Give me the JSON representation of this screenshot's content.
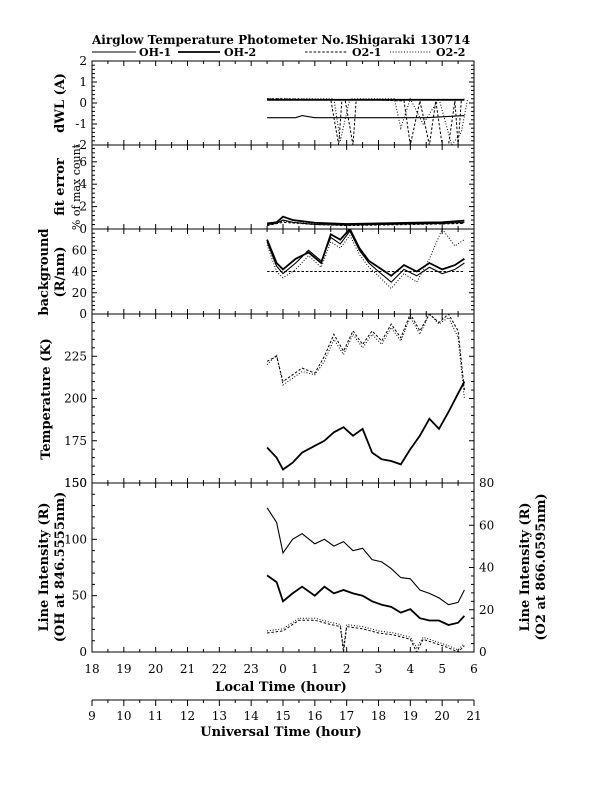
{
  "figure": {
    "title_left": "Airglow Temperature Photometer No.1",
    "title_station": "Shigaraki",
    "title_date": "130714"
  },
  "legend": [
    {
      "name": "OH-1",
      "style": "solid"
    },
    {
      "name": "OH-2",
      "style": "bold"
    },
    {
      "name": "O2-1",
      "style": "dash"
    },
    {
      "name": "O2-2",
      "style": "dot"
    }
  ],
  "chart_data": [
    {
      "type": "line",
      "id": "dwl",
      "ylabel": "dWL (A)",
      "ylim": [
        -2,
        2
      ],
      "yticks": [
        -2,
        -1,
        0,
        1,
        2
      ],
      "xlim_local": [
        18,
        30
      ],
      "series": [
        {
          "name": "OH-1",
          "x": [
            23.5,
            24.4,
            24.6,
            25.0,
            27.0,
            28.5,
            29.7
          ],
          "y": [
            -0.7,
            -0.7,
            -0.6,
            -0.7,
            -0.7,
            -0.7,
            -0.6
          ]
        },
        {
          "name": "OH-2",
          "x": [
            23.5,
            29.7
          ],
          "y": [
            0.15,
            0.15
          ]
        },
        {
          "name": "O2-1",
          "x": [
            23.5,
            24.0,
            25.5,
            25.75,
            25.85,
            25.95,
            26.2,
            26.3,
            26.6,
            26.7,
            27.8,
            28.0,
            28.3,
            28.6,
            28.8,
            29.0,
            29.2,
            29.4,
            29.5,
            29.6,
            29.7
          ],
          "y": [
            0.2,
            0.2,
            0.15,
            -2,
            0.15,
            0.15,
            -2,
            0.15,
            0.15,
            0.15,
            0.1,
            -2,
            0.1,
            -2,
            0.1,
            -2,
            -2,
            0.1,
            -2,
            0.1,
            0.2
          ]
        },
        {
          "name": "O2-2",
          "x": [
            23.5,
            25.6,
            25.8,
            26.1,
            26.4,
            27.5,
            27.7,
            28.0,
            28.4,
            28.9,
            29.3,
            29.6,
            29.8
          ],
          "y": [
            0.2,
            0.2,
            -1.8,
            0.2,
            0.2,
            0.2,
            -1.2,
            0.2,
            -1.0,
            0.2,
            -2,
            -1.4,
            0.2
          ]
        }
      ]
    },
    {
      "type": "line",
      "id": "fit_error",
      "ylabel": "fit error",
      "ylabel2": "% of max count",
      "ylim": [
        0,
        7.5
      ],
      "yticks": [
        0,
        2,
        4,
        6
      ],
      "xlim_local": [
        18,
        30
      ],
      "series": [
        {
          "name": "OH-1",
          "x": [
            23.5,
            23.8,
            24.0,
            24.3,
            25.0,
            26.0,
            27.0,
            28.0,
            29.0,
            29.7
          ],
          "y": [
            0.4,
            0.5,
            0.8,
            0.6,
            0.4,
            0.35,
            0.4,
            0.45,
            0.5,
            0.6
          ]
        },
        {
          "name": "OH-2",
          "x": [
            23.5,
            23.8,
            24.0,
            24.3,
            25.0,
            26.0,
            27.0,
            28.0,
            29.0,
            29.7
          ],
          "y": [
            0.5,
            0.6,
            1.1,
            0.8,
            0.55,
            0.45,
            0.5,
            0.55,
            0.6,
            0.75
          ]
        },
        {
          "name": "O2-1",
          "x": [
            23.5,
            24.0,
            25.0,
            26.0,
            27.0,
            28.0,
            29.0,
            29.7
          ],
          "y": [
            0.3,
            0.6,
            0.4,
            0.3,
            0.35,
            0.4,
            0.45,
            0.5
          ]
        },
        {
          "name": "O2-2",
          "x": [
            23.5,
            24.0,
            25.0,
            26.0,
            27.0,
            28.0,
            29.0,
            29.7
          ],
          "y": [
            0.35,
            0.7,
            0.45,
            0.35,
            0.4,
            0.45,
            0.5,
            0.55
          ]
        }
      ]
    },
    {
      "type": "line",
      "id": "background",
      "ylabel": "background",
      "ylabel2": "(R/nm)",
      "ylim": [
        0,
        80
      ],
      "yticks": [
        0,
        20,
        40,
        60
      ],
      "xlim_local": [
        18,
        30
      ],
      "series": [
        {
          "name": "OH-1",
          "x": [
            23.5,
            23.8,
            24.0,
            24.4,
            24.8,
            25.2,
            25.5,
            25.8,
            26.1,
            26.4,
            26.7,
            27.0,
            27.4,
            27.8,
            28.2,
            28.6,
            29.0,
            29.4,
            29.7
          ],
          "y": [
            68,
            45,
            38,
            48,
            60,
            50,
            72,
            66,
            78,
            60,
            48,
            40,
            30,
            42,
            36,
            44,
            38,
            42,
            48
          ]
        },
        {
          "name": "OH-2",
          "x": [
            23.5,
            23.8,
            24.0,
            24.4,
            24.8,
            25.2,
            25.5,
            25.8,
            26.1,
            26.4,
            26.7,
            27.0,
            27.4,
            27.8,
            28.2,
            28.6,
            29.0,
            29.4,
            29.7
          ],
          "y": [
            70,
            48,
            42,
            52,
            58,
            48,
            75,
            70,
            80,
            62,
            50,
            44,
            36,
            46,
            40,
            48,
            42,
            46,
            52
          ]
        },
        {
          "name": "O2-1",
          "x": [
            23.5,
            29.7
          ],
          "y": [
            40,
            40
          ]
        },
        {
          "name": "O2-2",
          "x": [
            23.5,
            23.8,
            24.0,
            24.4,
            24.8,
            25.2,
            25.5,
            25.8,
            26.1,
            26.4,
            26.7,
            27.0,
            27.4,
            27.8,
            28.2,
            28.6,
            29.0,
            29.4,
            29.7
          ],
          "y": [
            65,
            40,
            34,
            42,
            55,
            44,
            68,
            62,
            74,
            56,
            44,
            36,
            24,
            38,
            30,
            52,
            80,
            64,
            70
          ]
        }
      ]
    },
    {
      "type": "line",
      "id": "temperature",
      "ylabel": "Temperature (K)",
      "ylim": [
        150,
        250
      ],
      "yticks": [
        150,
        175,
        200,
        225
      ],
      "xlim_local": [
        18,
        30
      ],
      "series": [
        {
          "name": "OH-1",
          "x": [
            23.5,
            23.8,
            24.0,
            24.3,
            24.6,
            25.0,
            25.3,
            25.6,
            25.9,
            26.2,
            26.5,
            26.8,
            27.1,
            27.4,
            27.7,
            28.0,
            28.3,
            28.6,
            28.9,
            29.2,
            29.5,
            29.7
          ],
          "y": [
            171,
            165,
            158,
            162,
            168,
            172,
            175,
            180,
            183,
            178,
            182,
            168,
            164,
            163,
            161,
            170,
            178,
            188,
            182,
            192,
            203,
            210
          ]
        },
        {
          "name": "OH-2",
          "x": [
            23.5,
            23.8,
            24.0,
            24.3,
            24.6,
            25.0,
            25.3,
            25.6,
            25.9,
            26.2,
            26.5,
            26.8,
            27.1,
            27.4,
            27.7,
            28.0,
            28.3,
            28.6,
            28.9,
            29.2,
            29.5,
            29.7
          ],
          "y": [
            171,
            165,
            158,
            162,
            168,
            172,
            175,
            180,
            183,
            178,
            182,
            168,
            164,
            163,
            161,
            170,
            178,
            188,
            182,
            192,
            203,
            210
          ]
        },
        {
          "name": "O2-1",
          "x": [
            23.5,
            23.8,
            24.0,
            24.3,
            24.6,
            25.0,
            25.3,
            25.6,
            25.9,
            26.2,
            26.5,
            26.8,
            27.1,
            27.4,
            27.7,
            28.0,
            28.3,
            28.6,
            28.9,
            29.2,
            29.5,
            29.7
          ],
          "y": [
            222,
            225,
            210,
            214,
            218,
            215,
            225,
            238,
            228,
            240,
            232,
            240,
            234,
            244,
            236,
            250,
            240,
            250,
            245,
            250,
            240,
            205
          ]
        },
        {
          "name": "O2-2",
          "x": [
            23.5,
            23.8,
            24.0,
            24.3,
            24.6,
            25.0,
            25.3,
            25.6,
            25.9,
            26.2,
            26.5,
            26.8,
            27.1,
            27.4,
            27.7,
            28.0,
            28.3,
            28.6,
            28.9,
            29.2,
            29.5,
            29.7
          ],
          "y": [
            220,
            226,
            208,
            212,
            216,
            214,
            222,
            235,
            226,
            238,
            230,
            238,
            232,
            242,
            234,
            248,
            238,
            250,
            244,
            248,
            236,
            200
          ]
        }
      ]
    },
    {
      "type": "line",
      "id": "line_intensity",
      "ylabel": "Line Intensity (R)",
      "ylabel2": "(OH at 846.5555nm)",
      "y2label": "Line Intensity (R)",
      "y2label2": "(O2 at 866.0595nm)",
      "ylim": [
        0,
        150
      ],
      "yticks": [
        0,
        50,
        100,
        150
      ],
      "y2lim": [
        0,
        80
      ],
      "y2ticks": [
        0,
        20,
        40,
        60,
        80
      ],
      "xlim_local": [
        18,
        30
      ],
      "series": [
        {
          "name": "OH-1",
          "axis": "left",
          "x": [
            23.5,
            23.8,
            24.0,
            24.3,
            24.6,
            25.0,
            25.3,
            25.6,
            25.9,
            26.2,
            26.5,
            26.8,
            27.1,
            27.4,
            27.7,
            28.0,
            28.3,
            28.6,
            28.9,
            29.2,
            29.5,
            29.7
          ],
          "y": [
            128,
            115,
            88,
            100,
            105,
            96,
            100,
            94,
            98,
            90,
            92,
            82,
            80,
            74,
            66,
            65,
            55,
            52,
            48,
            42,
            44,
            55
          ]
        },
        {
          "name": "OH-2",
          "axis": "left",
          "x": [
            23.5,
            23.8,
            24.0,
            24.3,
            24.6,
            25.0,
            25.3,
            25.6,
            25.9,
            26.2,
            26.5,
            26.8,
            27.1,
            27.4,
            27.7,
            28.0,
            28.3,
            28.6,
            28.9,
            29.2,
            29.5,
            29.7
          ],
          "y": [
            68,
            62,
            45,
            52,
            58,
            50,
            58,
            52,
            55,
            52,
            50,
            45,
            42,
            40,
            35,
            38,
            30,
            28,
            28,
            24,
            26,
            32
          ]
        },
        {
          "name": "O2-1",
          "axis": "right",
          "x": [
            23.5,
            24.0,
            24.5,
            25.0,
            25.5,
            25.8,
            25.9,
            26.0,
            26.5,
            27.0,
            27.5,
            28.0,
            28.2,
            28.4,
            28.8,
            29.2,
            29.5,
            29.7
          ],
          "y": [
            9,
            10,
            15,
            15,
            13,
            12,
            0,
            12,
            11,
            9,
            8,
            6,
            0,
            6,
            4,
            2,
            0,
            3
          ]
        },
        {
          "name": "O2-2",
          "axis": "right",
          "x": [
            23.5,
            24.0,
            24.5,
            25.0,
            25.5,
            25.8,
            25.9,
            26.0,
            26.5,
            27.0,
            27.5,
            28.0,
            28.2,
            28.4,
            28.8,
            29.2,
            29.5,
            29.7
          ],
          "y": [
            10,
            11,
            16,
            16,
            14,
            13,
            2,
            13,
            12,
            10,
            9,
            7,
            2,
            7,
            5,
            3,
            1,
            4
          ]
        }
      ]
    }
  ],
  "x_axes": {
    "local": {
      "label": "Local Time (hour)",
      "ticks": [
        "18",
        "19",
        "20",
        "21",
        "22",
        "23",
        "0",
        "1",
        "2",
        "3",
        "4",
        "5",
        "6"
      ]
    },
    "universal": {
      "label": "Universal Time (hour)",
      "ticks": [
        "9",
        "10",
        "11",
        "12",
        "13",
        "14",
        "15",
        "16",
        "17",
        "18",
        "19",
        "20",
        "21"
      ]
    }
  }
}
